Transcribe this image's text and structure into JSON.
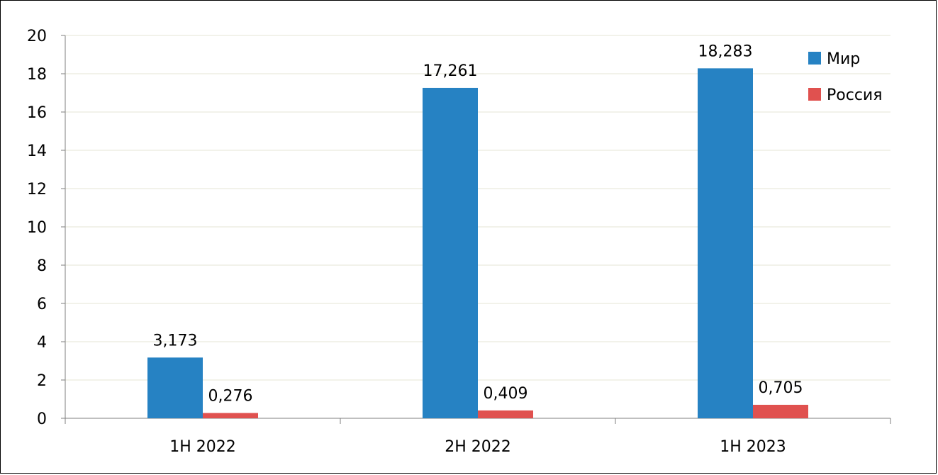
{
  "chart_data": {
    "type": "bar",
    "title": "",
    "xlabel": "",
    "ylabel": "",
    "categories": [
      "1H 2022",
      "2H 2022",
      "1H 2023"
    ],
    "series": [
      {
        "name": "Мир",
        "color": "#2682c3",
        "values": [
          3.173,
          17.261,
          18.283
        ],
        "labels": [
          "3,173",
          "17,261",
          "18,283"
        ]
      },
      {
        "name": "Россия",
        "color": "#e0514f",
        "values": [
          0.276,
          0.409,
          0.705
        ],
        "labels": [
          "0,276",
          "0,409",
          "0,705"
        ]
      }
    ],
    "ylim": [
      0,
      20
    ],
    "yticks": [
      0,
      2,
      4,
      6,
      8,
      10,
      12,
      14,
      16,
      18,
      20
    ],
    "grid": true,
    "legend": "top-right"
  }
}
